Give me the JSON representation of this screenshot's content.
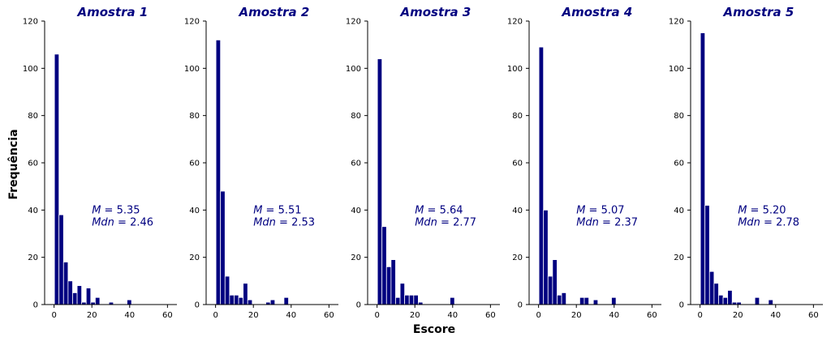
{
  "figure": {
    "ylabel": "Frequência",
    "xlabel": "Escore",
    "colors": {
      "bar": "#000080",
      "bar_edge": "#ffffff",
      "text_accent": "#000080",
      "axis": "#000000"
    }
  },
  "chart_data": [
    {
      "type": "bar",
      "title": "Amostra 1",
      "mean_label": "M",
      "mean_value": "5.35",
      "median_label": "Mdn",
      "median_value": "2.46",
      "xlim": [
        -5,
        65
      ],
      "ylim": [
        0,
        120
      ],
      "xticks": [
        0,
        20,
        40,
        60
      ],
      "yticks": [
        0,
        20,
        40,
        60,
        80,
        100,
        120
      ],
      "bin_width": 2.4,
      "bin_starts": [
        0.2,
        2.6,
        5.0,
        7.4,
        9.8,
        12.2,
        14.6,
        17.0,
        19.4,
        21.8,
        24.2,
        26.6,
        29.0,
        31.4,
        33.8,
        36.2,
        38.6
      ],
      "values": [
        106,
        38,
        18,
        10,
        5,
        8,
        1,
        7,
        1,
        3,
        0,
        0,
        1,
        0,
        0,
        0,
        2
      ]
    },
    {
      "type": "bar",
      "title": "Amostra 2",
      "mean_label": "M",
      "mean_value": "5.51",
      "median_label": "Mdn",
      "median_value": "2.53",
      "xlim": [
        -5,
        65
      ],
      "ylim": [
        0,
        120
      ],
      "xticks": [
        0,
        20,
        40,
        60
      ],
      "yticks": [
        0,
        20,
        40,
        60,
        80,
        100,
        120
      ],
      "bin_width": 2.4,
      "bin_starts": [
        0.2,
        2.6,
        5.0,
        7.4,
        9.8,
        12.2,
        14.6,
        17.0,
        19.4,
        21.8,
        24.2,
        26.6,
        29.0,
        31.4,
        33.8,
        36.2,
        38.6
      ],
      "values": [
        112,
        48,
        12,
        4,
        4,
        3,
        9,
        2,
        0,
        0,
        0,
        1,
        2,
        0,
        0,
        3,
        0
      ]
    },
    {
      "type": "bar",
      "title": "Amostra 3",
      "mean_label": "M",
      "mean_value": "5.64",
      "median_label": "Mdn",
      "median_value": "2.77",
      "xlim": [
        -5,
        65
      ],
      "ylim": [
        0,
        120
      ],
      "xticks": [
        0,
        20,
        40,
        60
      ],
      "yticks": [
        0,
        20,
        40,
        60,
        80,
        100,
        120
      ],
      "bin_width": 2.4,
      "bin_starts": [
        0.2,
        2.6,
        5.0,
        7.4,
        9.8,
        12.2,
        14.6,
        17.0,
        19.4,
        21.8,
        24.2,
        26.6,
        29.0,
        31.4,
        33.8,
        36.2,
        38.6
      ],
      "values": [
        104,
        33,
        16,
        19,
        3,
        9,
        4,
        4,
        4,
        1,
        0,
        0,
        0,
        0,
        0,
        0,
        3
      ]
    },
    {
      "type": "bar",
      "title": "Amostra 4",
      "mean_label": "M",
      "mean_value": "5.07",
      "median_label": "Mdn",
      "median_value": "2.37",
      "xlim": [
        -5,
        65
      ],
      "ylim": [
        0,
        120
      ],
      "xticks": [
        0,
        20,
        40,
        60
      ],
      "yticks": [
        0,
        20,
        40,
        60,
        80,
        100,
        120
      ],
      "bin_width": 2.4,
      "bin_starts": [
        0.2,
        2.6,
        5.0,
        7.4,
        9.8,
        12.2,
        14.6,
        17.0,
        19.4,
        21.8,
        24.2,
        26.6,
        29.0,
        31.4,
        33.8,
        36.2,
        38.6
      ],
      "values": [
        109,
        40,
        12,
        19,
        4,
        5,
        0,
        0,
        0,
        3,
        3,
        0,
        2,
        0,
        0,
        0,
        3
      ]
    },
    {
      "type": "bar",
      "title": "Amostra 5",
      "mean_label": "M",
      "mean_value": "5.20",
      "median_label": "Mdn",
      "median_value": "2.78",
      "xlim": [
        -5,
        65
      ],
      "ylim": [
        0,
        120
      ],
      "xticks": [
        0,
        20,
        40,
        60
      ],
      "yticks": [
        0,
        20,
        40,
        60,
        80,
        100,
        120
      ],
      "bin_width": 2.4,
      "bin_starts": [
        0.2,
        2.6,
        5.0,
        7.4,
        9.8,
        12.2,
        14.6,
        17.0,
        19.4,
        21.8,
        24.2,
        26.6,
        29.0,
        31.4,
        33.8,
        36.2,
        38.6
      ],
      "values": [
        115,
        42,
        14,
        9,
        4,
        3,
        6,
        1,
        1,
        0,
        0,
        0,
        3,
        0,
        0,
        2,
        0
      ]
    }
  ]
}
